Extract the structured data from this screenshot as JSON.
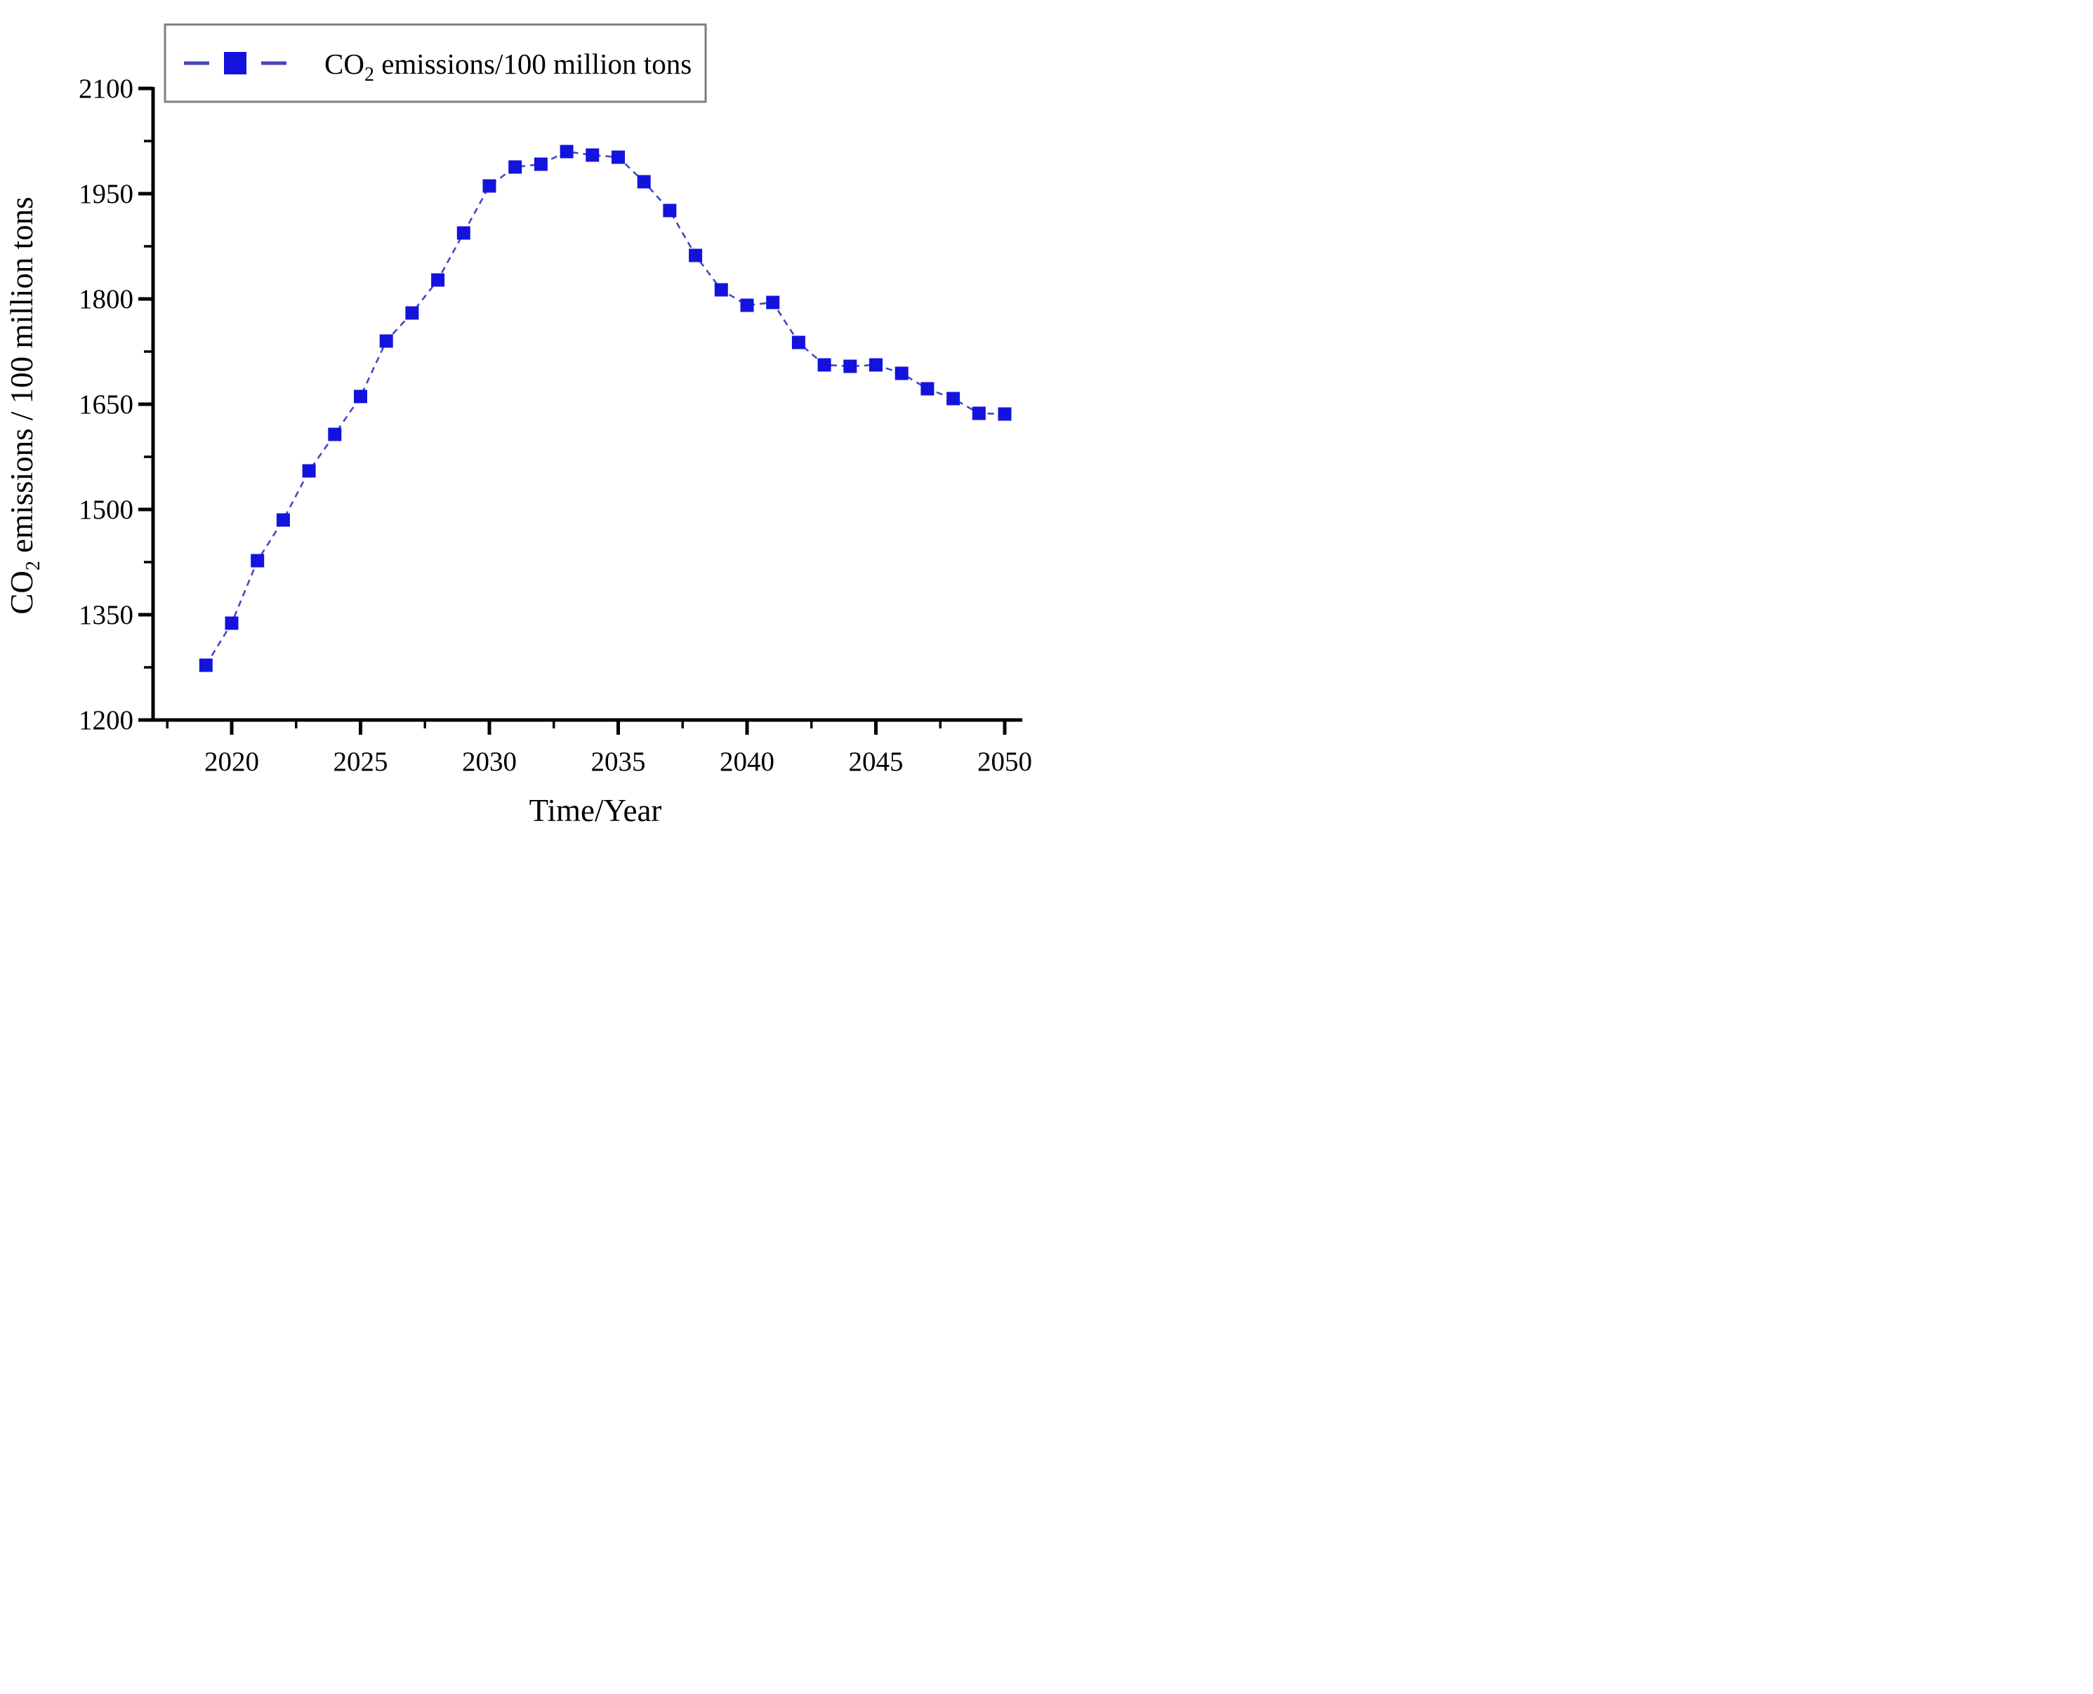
{
  "labels": {
    "x_title": "Time/Year",
    "y_title_prefix": "CO",
    "y_title_sub": "2",
    "y_title_rest": " emissions / 100 million tons",
    "legend_prefix": "CO",
    "legend_sub": "2",
    "legend_rest": " emissions/100 million tons"
  },
  "chart_data": {
    "type": "line",
    "title": "",
    "xlabel": "Time/Year",
    "ylabel": "CO2 emissions / 100 million tons",
    "legend": [
      "CO2 emissions/100 million tons"
    ],
    "legend_position": "top-left",
    "grid": false,
    "marker": "square",
    "line_style": "dashed",
    "xlim": [
      2017,
      2050.7
    ],
    "ylim": [
      1200,
      2100
    ],
    "x_major_ticks": [
      2020,
      2025,
      2030,
      2035,
      2040,
      2045,
      2050
    ],
    "x_minor_ticks": [
      2017.5,
      2022.5,
      2027.5,
      2032.5,
      2037.5,
      2042.5,
      2047.5
    ],
    "y_major_ticks": [
      1200,
      1350,
      1500,
      1650,
      1800,
      1950,
      2100
    ],
    "y_minor_ticks": [
      1275,
      1425,
      1575,
      1725,
      1875,
      2025
    ],
    "x": [
      2019,
      2020,
      2021,
      2022,
      2023,
      2024,
      2025,
      2026,
      2027,
      2028,
      2029,
      2030,
      2031,
      2032,
      2033,
      2034,
      2035,
      2036,
      2037,
      2038,
      2039,
      2040,
      2041,
      2042,
      2043,
      2044,
      2045,
      2046,
      2047,
      2048,
      2049,
      2050
    ],
    "series": [
      {
        "name": "CO2 emissions/100 million tons",
        "values": [
          1278,
          1338,
          1427,
          1485,
          1555,
          1607,
          1661,
          1740,
          1780,
          1827,
          1894,
          1961,
          1988,
          1992,
          2010,
          2005,
          2002,
          1967,
          1926,
          1862,
          1813,
          1791,
          1795,
          1738,
          1706,
          1704,
          1706,
          1694,
          1672,
          1658,
          1637,
          1636
        ]
      }
    ],
    "colors": {
      "marker": "#1313dd",
      "line": "#4747c2",
      "axis": "#000000",
      "legend_border": "#7f7f7f",
      "text": "#000000"
    }
  }
}
